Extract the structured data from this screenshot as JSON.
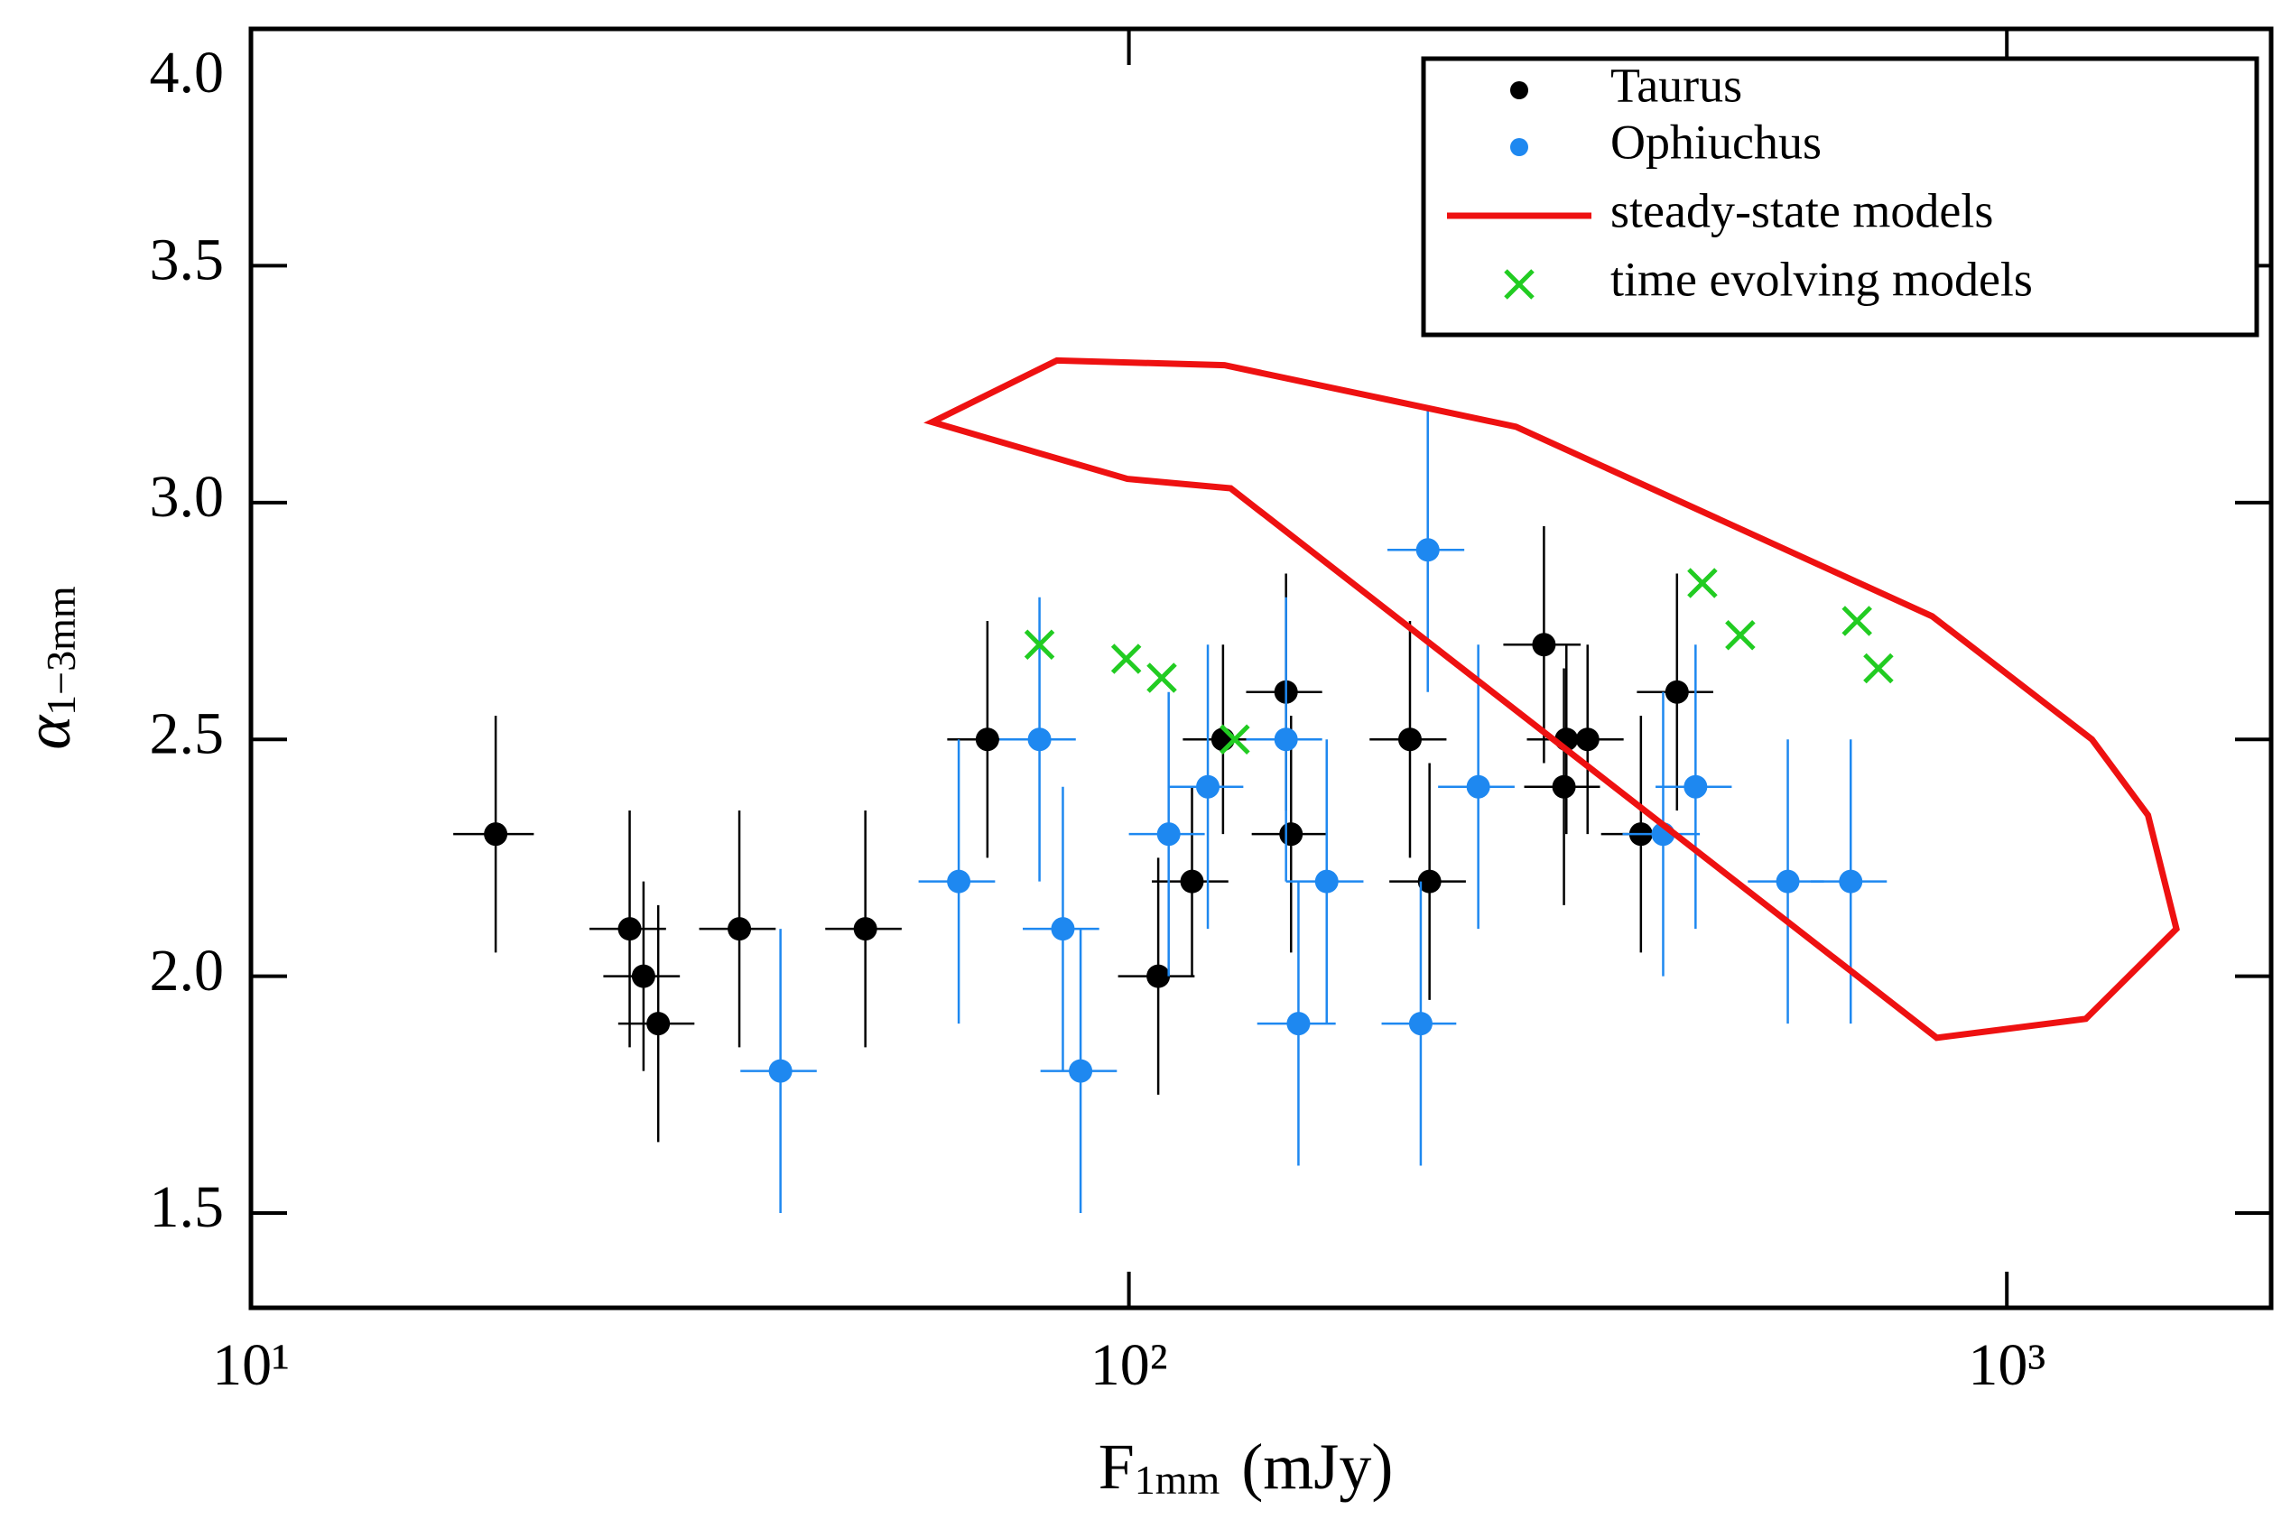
{
  "chart_data": {
    "type": "scatter",
    "x_label": "F",
    "x_label_sub": "1mm",
    "x_label_unit": "(mJy)",
    "y_label": "α",
    "y_label_sub": "1−3mm",
    "xscale": "log",
    "xlim": [
      10,
      2000
    ],
    "ylim": [
      1.3,
      4.0
    ],
    "xticks": [
      {
        "value": 10,
        "label": "10¹"
      },
      {
        "value": 100,
        "label": "10²"
      },
      {
        "value": 1000,
        "label": "10³"
      }
    ],
    "yticks": [
      {
        "value": 1.5,
        "label": "1.5"
      },
      {
        "value": 2,
        "label": "2.0"
      },
      {
        "value": 2.5,
        "label": "2.5"
      },
      {
        "value": 3,
        "label": "3.0"
      },
      {
        "value": 3.5,
        "label": "3.5"
      },
      {
        "value": 4,
        "label": "4.0"
      }
    ],
    "legend": "upper right",
    "series": [
      {
        "name": "Taurus",
        "color": "#000000",
        "marker": "circle",
        "x": [
          19,
          27,
          28,
          29.1,
          36,
          50.1,
          69,
          108,
          118,
          128,
          151,
          153,
          209,
          220,
          297,
          313,
          315,
          333,
          383,
          421
        ],
        "values": [
          2.3,
          2.1,
          2.0,
          1.9,
          2.1,
          2.1,
          2.5,
          2.0,
          2.2,
          2.5,
          2.6,
          2.3,
          2.5,
          2.2,
          2.7,
          2.4,
          2.5,
          2.5,
          2.3,
          2.6
        ],
        "xerr": [
          2,
          2.7,
          2.8,
          2.9,
          3.6,
          5,
          6.9,
          10.8,
          11.8,
          12.8,
          15,
          15,
          21,
          22,
          30,
          31,
          31,
          33,
          38,
          42
        ],
        "yerr": [
          0.25,
          0.25,
          0.2,
          0.25,
          0.25,
          0.25,
          0.25,
          0.25,
          0.2,
          0.2,
          0.25,
          0.25,
          0.25,
          0.25,
          0.25,
          0.25,
          0.2,
          0.2,
          0.25,
          0.25
        ]
      },
      {
        "name": "Ophiuchus",
        "color": "#1e88f0",
        "marker": "circle",
        "x": [
          40.1,
          64,
          79.1,
          84.1,
          88.1,
          111,
          123,
          151,
          156,
          168,
          215,
          219,
          250,
          406,
          442,
          563,
          664
        ],
        "values": [
          1.8,
          2.2,
          2.5,
          2.1,
          1.8,
          2.3,
          2.4,
          2.5,
          1.9,
          2.2,
          1.9,
          2.9,
          2.4,
          2.3,
          2.4,
          2.2,
          2.2
        ],
        "xerr": [
          4,
          6.4,
          7.9,
          8.4,
          8.8,
          11,
          12,
          15,
          16,
          17,
          21,
          22,
          25,
          41,
          44,
          56,
          66
        ],
        "yerr": [
          0.3,
          0.3,
          0.3,
          0.3,
          0.3,
          0.3,
          0.3,
          0.3,
          0.3,
          0.3,
          0.3,
          0.3,
          0.3,
          0.3,
          0.3,
          0.3,
          0.3
        ]
      },
      {
        "name": "steady-state models",
        "color": "#ee1111",
        "marker": "line",
        "x": [
          59.7,
          82.8,
          128.5,
          276,
          822,
          1250,
          1448,
          1560,
          1230,
          832,
          130.6,
          99.6
        ],
        "values": [
          3.17,
          3.3,
          3.29,
          3.16,
          2.76,
          2.5,
          2.34,
          2.1,
          1.91,
          1.87,
          3.03,
          3.05
        ]
      },
      {
        "name": "time evolving models",
        "color": "#22cc22",
        "marker": "x",
        "x": [
          79.1,
          99.3,
          109,
          132,
          450,
          497,
          675,
          714
        ],
        "values": [
          2.7,
          2.67,
          2.63,
          2.5,
          2.83,
          2.72,
          2.75,
          2.65
        ]
      }
    ]
  }
}
